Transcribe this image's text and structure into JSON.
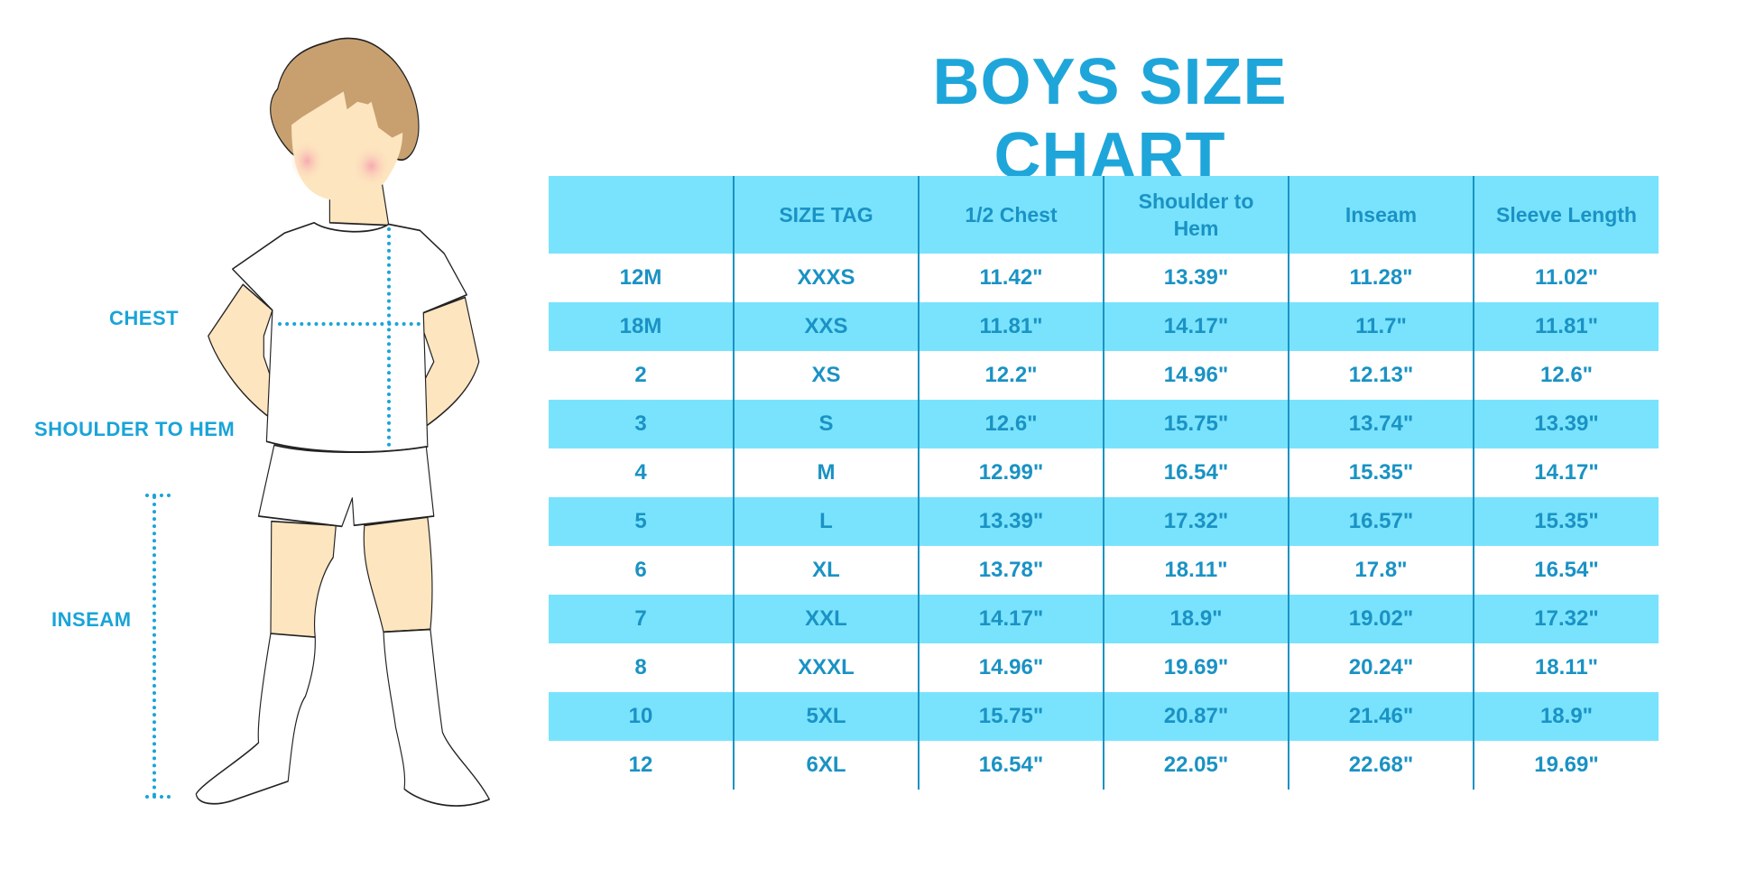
{
  "title": "BOYS SIZE CHART",
  "labels": {
    "chest": "CHEST",
    "shoulder_to_hem": "SHOULDER TO HEM",
    "inseam": "INSEAM"
  },
  "colors": {
    "accent": "#1ea6da",
    "row_highlight": "#79e3fd",
    "table_text": "#1a92c4"
  },
  "table": {
    "headers": [
      "",
      "SIZE TAG",
      "1/2 Chest",
      "Shoulder to Hem",
      "Inseam",
      "Sleeve Length"
    ],
    "rows": [
      [
        "12M",
        "XXXS",
        "11.42\"",
        "13.39\"",
        "11.28\"",
        "11.02\""
      ],
      [
        "18M",
        "XXS",
        "11.81\"",
        "14.17\"",
        "11.7\"",
        "11.81\""
      ],
      [
        "2",
        "XS",
        "12.2\"",
        "14.96\"",
        "12.13\"",
        "12.6\""
      ],
      [
        "3",
        "S",
        "12.6\"",
        "15.75\"",
        "13.74\"",
        "13.39\""
      ],
      [
        "4",
        "M",
        "12.99\"",
        "16.54\"",
        "15.35\"",
        "14.17\""
      ],
      [
        "5",
        "L",
        "13.39\"",
        "17.32\"",
        "16.57\"",
        "15.35\""
      ],
      [
        "6",
        "XL",
        "13.78\"",
        "18.11\"",
        "17.8\"",
        "16.54\""
      ],
      [
        "7",
        "XXL",
        "14.17\"",
        "18.9\"",
        "19.02\"",
        "17.32\""
      ],
      [
        "8",
        "XXXL",
        "14.96\"",
        "19.69\"",
        "20.24\"",
        "18.11\""
      ],
      [
        "10",
        "5XL",
        "15.75\"",
        "20.87\"",
        "21.46\"",
        "18.9\""
      ],
      [
        "12",
        "6XL",
        "16.54\"",
        "22.05\"",
        "22.68\"",
        "19.69\""
      ]
    ]
  }
}
